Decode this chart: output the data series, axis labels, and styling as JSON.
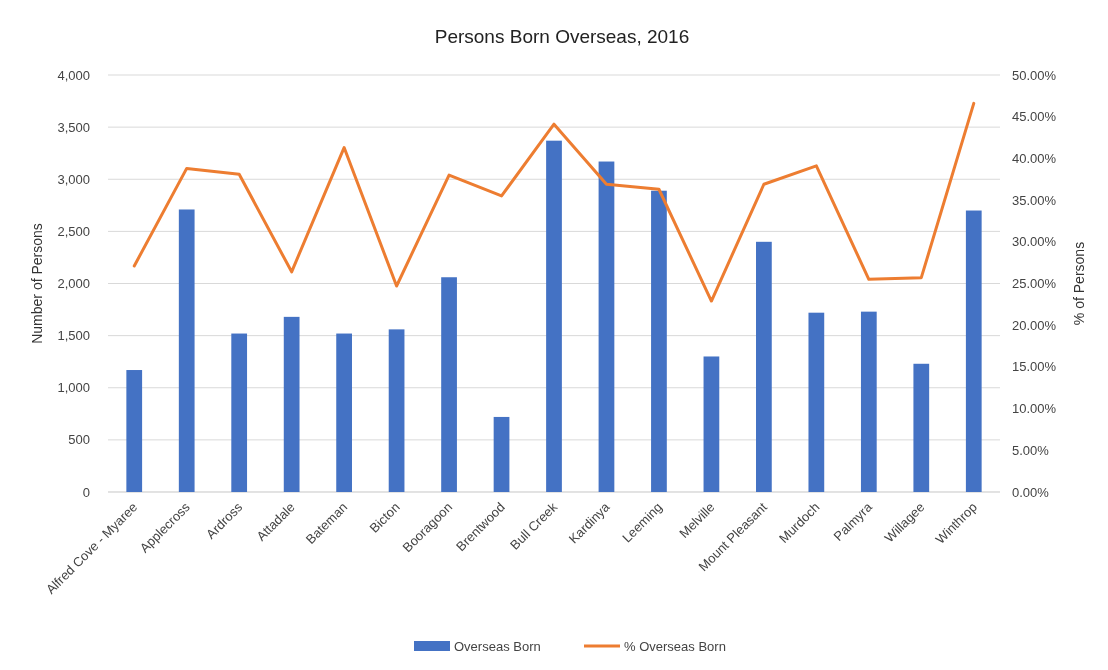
{
  "chart_data": {
    "type": "bar",
    "title": "Persons Born Overseas, 2016",
    "ylabel": "Number  of Persons",
    "y2label": "% of Persons",
    "categories": [
      "Alfred Cove - Myaree",
      "Applecross",
      "Ardross",
      "Attadale",
      "Bateman",
      "Bicton",
      "Booragoon",
      "Brentwood",
      "Bull Creek",
      "Kardinya",
      "Leeming",
      "Melville",
      "Mount Pleasant",
      "Murdoch",
      "Palmyra",
      "Willagee",
      "Winthrop"
    ],
    "series": [
      {
        "name": "Overseas Born",
        "color": "#4472c4",
        "values": [
          1170,
          2710,
          1520,
          1680,
          1520,
          1560,
          2060,
          720,
          3370,
          3170,
          2890,
          1300,
          2400,
          1720,
          1730,
          1230,
          2700
        ]
      },
      {
        "name": "% Overseas Born",
        "type": "line",
        "axis": "y2",
        "color": "#ed7d31",
        "values": [
          27.1,
          38.8,
          38.1,
          26.4,
          41.3,
          24.7,
          38.0,
          35.5,
          44.1,
          36.9,
          36.3,
          22.9,
          36.9,
          39.1,
          25.5,
          25.7,
          46.6
        ]
      }
    ],
    "ylim": [
      0,
      4000
    ],
    "yticks": [
      {
        "value": 0,
        "label": "0"
      },
      {
        "value": 500,
        "label": "500"
      },
      {
        "value": 1000,
        "label": "1,000"
      },
      {
        "value": 1500,
        "label": "1,500"
      },
      {
        "value": 2000,
        "label": "2,000"
      },
      {
        "value": 2500,
        "label": "2,500"
      },
      {
        "value": 3000,
        "label": "3,000"
      },
      {
        "value": 3500,
        "label": "3,500"
      },
      {
        "value": 4000,
        "label": "4,000"
      }
    ],
    "y2lim": [
      0,
      50
    ],
    "y2ticks": [
      {
        "value": 0,
        "label": "0.00%"
      },
      {
        "value": 5,
        "label": "5.00%"
      },
      {
        "value": 10,
        "label": "10.00%"
      },
      {
        "value": 15,
        "label": "15.00%"
      },
      {
        "value": 20,
        "label": "20.00%"
      },
      {
        "value": 25,
        "label": "25.00%"
      },
      {
        "value": 30,
        "label": "30.00%"
      },
      {
        "value": 35,
        "label": "35.00%"
      },
      {
        "value": 40,
        "label": "40.00%"
      },
      {
        "value": 45,
        "label": "45.00%"
      },
      {
        "value": 50,
        "label": "50.00%"
      }
    ],
    "grid": "y",
    "legend": "bottom",
    "line_style": "solid"
  }
}
